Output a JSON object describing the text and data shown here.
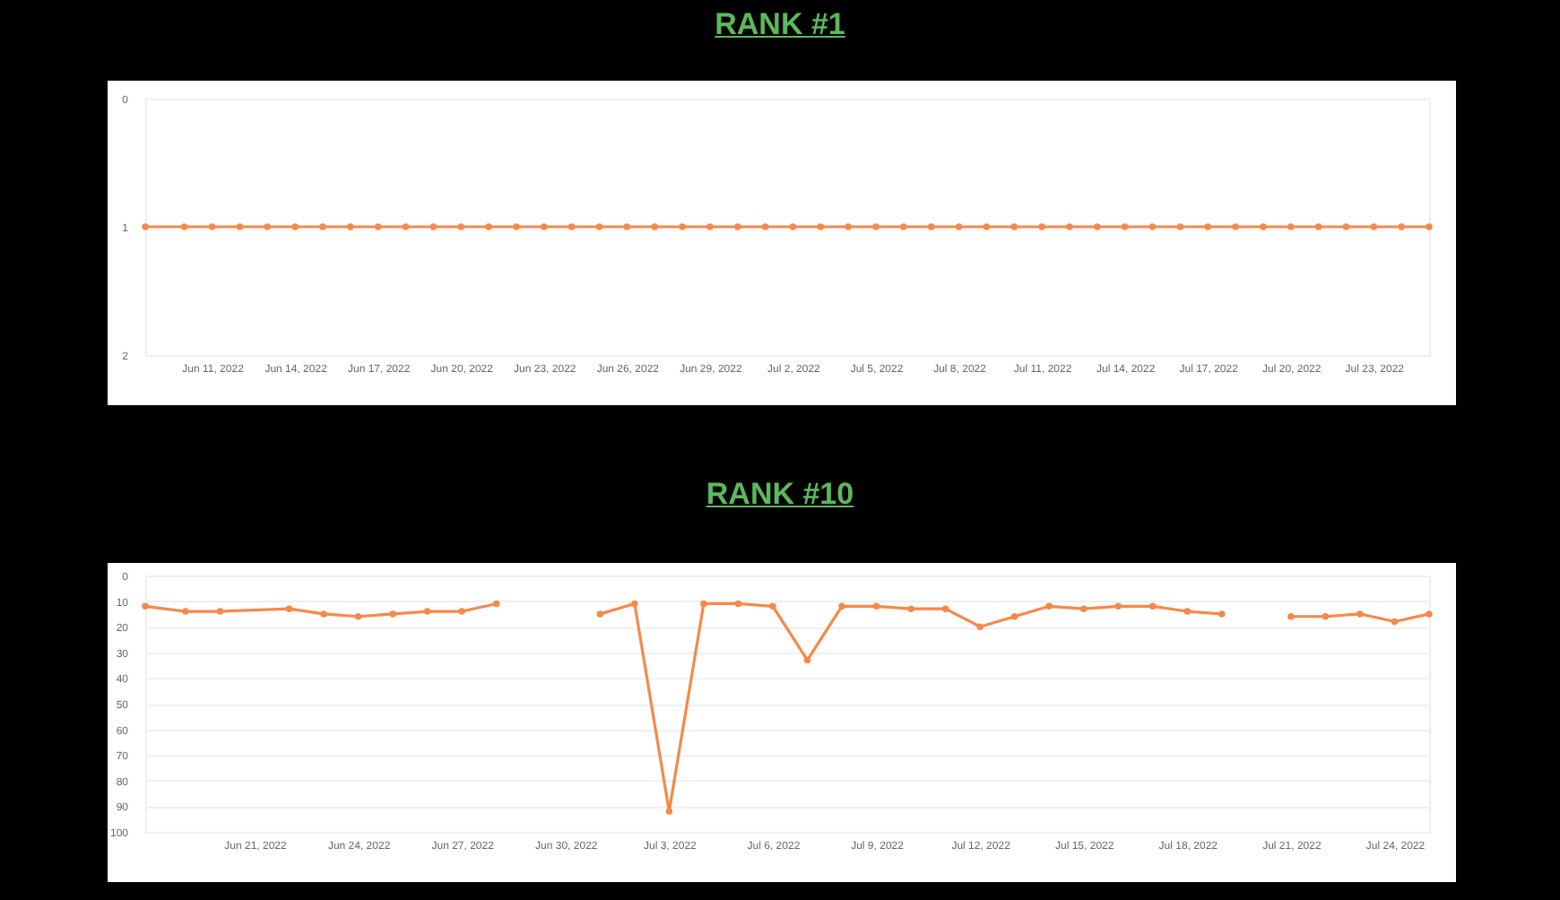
{
  "chart_data": [
    {
      "type": "line",
      "title": "RANK #1",
      "x": [
        "2022-06-08T14:00",
        "2022-06-10",
        "2022-06-11",
        "2022-06-12",
        "2022-06-13",
        "2022-06-14",
        "2022-06-15",
        "2022-06-16",
        "2022-06-17",
        "2022-06-18",
        "2022-06-19",
        "2022-06-20",
        "2022-06-21",
        "2022-06-22",
        "2022-06-23",
        "2022-06-24",
        "2022-06-25",
        "2022-06-26",
        "2022-06-27",
        "2022-06-28",
        "2022-06-29",
        "2022-06-30",
        "2022-07-01",
        "2022-07-02",
        "2022-07-03",
        "2022-07-04",
        "2022-07-05",
        "2022-07-06",
        "2022-07-07",
        "2022-07-08",
        "2022-07-09",
        "2022-07-10",
        "2022-07-11",
        "2022-07-12",
        "2022-07-13",
        "2022-07-14",
        "2022-07-15",
        "2022-07-16",
        "2022-07-17",
        "2022-07-18",
        "2022-07-19",
        "2022-07-20",
        "2022-07-21",
        "2022-07-22",
        "2022-07-23",
        "2022-07-24",
        "2022-07-25"
      ],
      "series": [
        {
          "color": "#f5894a",
          "values": [
            1,
            1,
            1,
            1,
            1,
            1,
            1,
            1,
            1,
            1,
            1,
            1,
            1,
            1,
            1,
            1,
            1,
            1,
            1,
            1,
            1,
            1,
            1,
            1,
            1,
            1,
            1,
            1,
            1,
            1,
            1,
            1,
            1,
            1,
            1,
            1,
            1,
            1,
            1,
            1,
            1,
            1,
            1,
            1,
            1,
            1,
            1
          ]
        }
      ],
      "xlim": [
        "2022-06-08T14:00",
        "2022-07-25"
      ],
      "xticks": [
        {
          "value": "2022-06-11",
          "label": "Jun 11, 2022"
        },
        {
          "value": "2022-06-14",
          "label": "Jun 14, 2022"
        },
        {
          "value": "2022-06-17",
          "label": "Jun 17, 2022"
        },
        {
          "value": "2022-06-20",
          "label": "Jun 20, 2022"
        },
        {
          "value": "2022-06-23",
          "label": "Jun 23, 2022"
        },
        {
          "value": "2022-06-26",
          "label": "Jun 26, 2022"
        },
        {
          "value": "2022-06-29",
          "label": "Jun 29, 2022"
        },
        {
          "value": "2022-07-02",
          "label": "Jul 2, 2022"
        },
        {
          "value": "2022-07-05",
          "label": "Jul 5, 2022"
        },
        {
          "value": "2022-07-08",
          "label": "Jul 8, 2022"
        },
        {
          "value": "2022-07-11",
          "label": "Jul 11, 2022"
        },
        {
          "value": "2022-07-14",
          "label": "Jul 14, 2022"
        },
        {
          "value": "2022-07-17",
          "label": "Jul 17, 2022"
        },
        {
          "value": "2022-07-20",
          "label": "Jul 20, 2022"
        },
        {
          "value": "2022-07-23",
          "label": "Jul 23, 2022"
        }
      ],
      "ylim": [
        2,
        0
      ],
      "yticks": [
        0,
        1,
        2
      ],
      "marker": "circle",
      "line_style": "solid"
    },
    {
      "type": "line",
      "title": "RANK #10",
      "x": [
        "2022-06-17T20:00",
        "2022-06-19",
        "2022-06-20",
        "2022-06-22",
        "2022-06-23",
        "2022-06-24",
        "2022-06-25",
        "2022-06-26",
        "2022-06-27",
        "2022-06-28",
        "2022-06-29",
        "2022-06-30",
        "2022-07-01",
        "2022-07-02",
        "2022-07-03",
        "2022-07-04",
        "2022-07-05",
        "2022-07-06",
        "2022-07-07",
        "2022-07-08",
        "2022-07-09",
        "2022-07-10",
        "2022-07-11",
        "2022-07-12",
        "2022-07-13",
        "2022-07-14",
        "2022-07-15",
        "2022-07-16",
        "2022-07-17",
        "2022-07-18",
        "2022-07-19",
        "2022-07-20",
        "2022-07-21",
        "2022-07-22",
        "2022-07-23",
        "2022-07-24",
        "2022-07-25"
      ],
      "series": [
        {
          "color": "#f5894a",
          "values": [
            12,
            14,
            14,
            13,
            15,
            16,
            15,
            14,
            14,
            11,
            null,
            null,
            15,
            11,
            92,
            11,
            11,
            12,
            33,
            12,
            12,
            13,
            13,
            20,
            16,
            12,
            13,
            12,
            12,
            14,
            15,
            null,
            16,
            16,
            15,
            18,
            15
          ]
        }
      ],
      "xlim": [
        "2022-06-17T20:00",
        "2022-07-25"
      ],
      "xticks": [
        {
          "value": "2022-06-21",
          "label": "Jun 21, 2022"
        },
        {
          "value": "2022-06-24",
          "label": "Jun 24, 2022"
        },
        {
          "value": "2022-06-27",
          "label": "Jun 27, 2022"
        },
        {
          "value": "2022-06-30",
          "label": "Jun 30, 2022"
        },
        {
          "value": "2022-07-03",
          "label": "Jul 3, 2022"
        },
        {
          "value": "2022-07-06",
          "label": "Jul 6, 2022"
        },
        {
          "value": "2022-07-09",
          "label": "Jul 9, 2022"
        },
        {
          "value": "2022-07-12",
          "label": "Jul 12, 2022"
        },
        {
          "value": "2022-07-15",
          "label": "Jul 15, 2022"
        },
        {
          "value": "2022-07-18",
          "label": "Jul 18, 2022"
        },
        {
          "value": "2022-07-21",
          "label": "Jul 21, 2022"
        },
        {
          "value": "2022-07-24",
          "label": "Jul 24, 2022"
        }
      ],
      "ylim": [
        100,
        0
      ],
      "yticks": [
        0,
        10,
        20,
        30,
        40,
        50,
        60,
        70,
        80,
        90,
        100
      ],
      "grid": "y",
      "marker": "circle",
      "line_style": "solid"
    }
  ]
}
